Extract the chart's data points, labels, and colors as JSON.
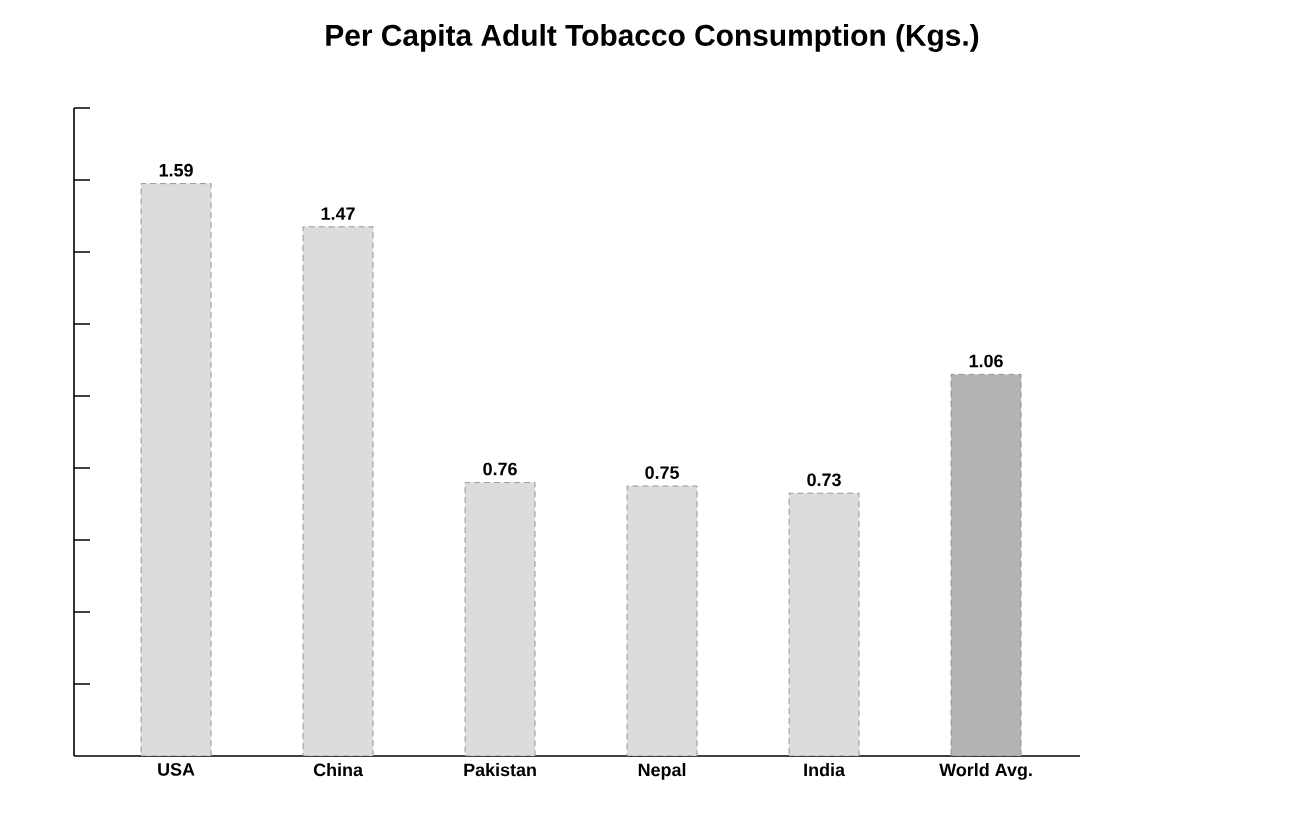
{
  "chart_data": {
    "type": "bar",
    "title": "Per Capita Adult Tobacco Consumption (Kgs.)",
    "categories": [
      "USA",
      "China",
      "Pakistan",
      "Nepal",
      "India",
      "World Avg."
    ],
    "values": [
      1.59,
      1.47,
      0.76,
      0.75,
      0.73,
      1.06
    ],
    "colors": [
      "#dcdcdc",
      "#dcdcdc",
      "#dcdcdc",
      "#dcdcdc",
      "#dcdcdc",
      "#b4b4b4"
    ],
    "ylim": [
      0,
      1.8
    ],
    "yticks": [
      {
        "value": 0.2,
        "label": null
      },
      {
        "value": 0.4,
        "label": null
      },
      {
        "value": 0.6,
        "label": null
      },
      {
        "value": 0.8,
        "label": null
      },
      {
        "value": 1.0,
        "label": null
      },
      {
        "value": 1.2,
        "label": null
      },
      {
        "value": 1.4,
        "label": null
      },
      {
        "value": 1.6,
        "label": null
      },
      {
        "value": 1.8,
        "label": null
      }
    ],
    "tick_labels": "x",
    "data_labels": true
  }
}
